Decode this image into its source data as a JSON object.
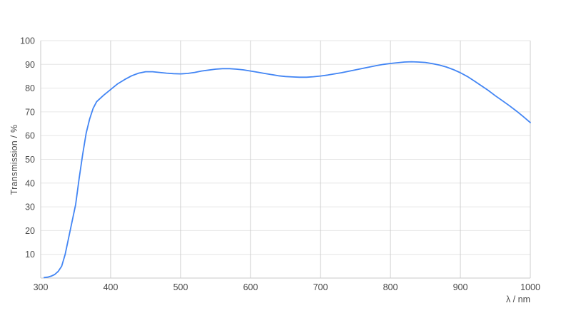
{
  "chart_data": {
    "type": "line",
    "title": "",
    "xlabel": "λ / nm",
    "ylabel": "Transmission / %",
    "xlim": [
      300,
      1000
    ],
    "ylim": [
      0,
      100
    ],
    "x_ticks": [
      300,
      400,
      500,
      600,
      700,
      800,
      900,
      1000
    ],
    "y_ticks": [
      10,
      20,
      30,
      40,
      50,
      60,
      70,
      80,
      90,
      100
    ],
    "grid": true,
    "legend_position": "none",
    "series": [
      {
        "name": "Transmission",
        "x": [
          305,
          310,
          315,
          320,
          325,
          330,
          335,
          340,
          345,
          350,
          355,
          360,
          365,
          370,
          375,
          380,
          390,
          400,
          410,
          420,
          430,
          440,
          450,
          460,
          470,
          480,
          490,
          500,
          510,
          520,
          530,
          540,
          550,
          560,
          570,
          580,
          590,
          600,
          610,
          620,
          630,
          640,
          650,
          660,
          670,
          680,
          690,
          700,
          710,
          720,
          730,
          740,
          750,
          760,
          770,
          780,
          790,
          800,
          810,
          820,
          830,
          840,
          850,
          860,
          870,
          880,
          890,
          900,
          910,
          920,
          930,
          940,
          950,
          960,
          970,
          980,
          990,
          1000
        ],
        "y": [
          0.2,
          0.4,
          0.8,
          1.5,
          2.8,
          5,
          10,
          17,
          24,
          31,
          42,
          52,
          61,
          67,
          71.5,
          74.3,
          77,
          79.4,
          81.8,
          83.6,
          85.2,
          86.3,
          86.9,
          86.9,
          86.6,
          86.3,
          86.1,
          86,
          86.2,
          86.6,
          87.2,
          87.6,
          88,
          88.2,
          88.2,
          88,
          87.7,
          87.2,
          86.7,
          86.2,
          85.7,
          85.2,
          84.9,
          84.7,
          84.6,
          84.6,
          84.8,
          85.1,
          85.5,
          86,
          86.5,
          87.1,
          87.7,
          88.3,
          88.9,
          89.5,
          90,
          90.4,
          90.7,
          91,
          91.1,
          91,
          90.8,
          90.3,
          89.7,
          88.9,
          87.8,
          86.5,
          84.9,
          83,
          81,
          79,
          76.8,
          74.7,
          72.6,
          70.4,
          68,
          65.5
        ]
      }
    ]
  },
  "colors": {
    "line": "#4285f4",
    "grid_horizontal": "#e6e6e6",
    "grid_vertical": "#cccccc",
    "axis": "#c9c9c9",
    "tick_text": "#4d4d4d",
    "background": "#ffffff"
  }
}
